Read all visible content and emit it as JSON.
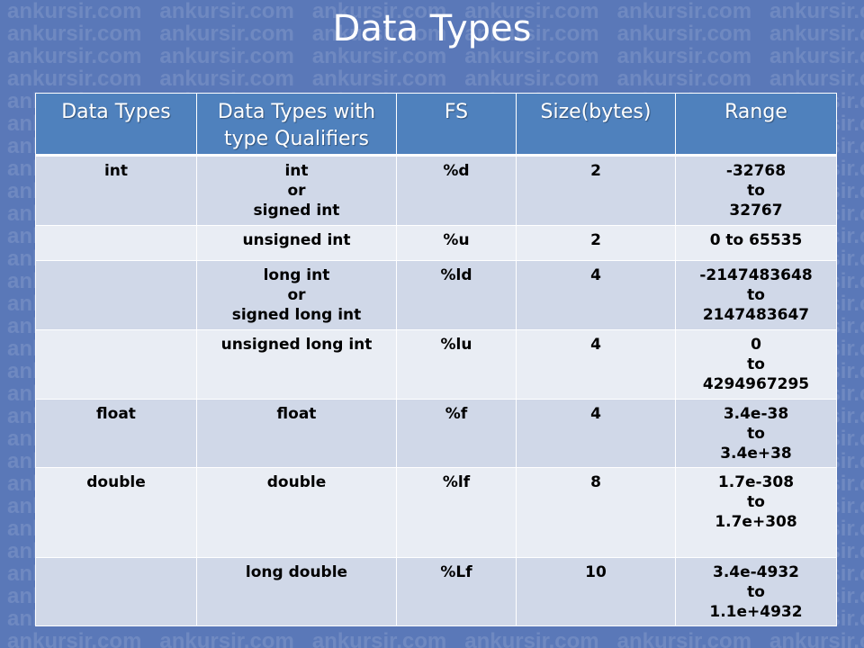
{
  "slide": {
    "title": "Data Types",
    "watermark": "ankursir.com"
  },
  "table": {
    "headers": [
      [
        "Data Types"
      ],
      [
        "Data Types with",
        "type Qualifiers"
      ],
      [
        "FS"
      ],
      [
        "Size(bytes)"
      ],
      [
        "Range"
      ]
    ],
    "rows": [
      {
        "data_type": "int",
        "qualified": [
          "int",
          "or",
          "signed int"
        ],
        "fs": "%d",
        "size": "2",
        "range": [
          "-32768",
          "to",
          "32767"
        ]
      },
      {
        "data_type": "",
        "qualified": [
          "unsigned int"
        ],
        "fs": "%u",
        "size": "2",
        "range": [
          "0 to 65535"
        ]
      },
      {
        "data_type": "",
        "qualified": [
          "long int",
          "or",
          "signed long int"
        ],
        "fs": "%ld",
        "size": "4",
        "range": [
          "-2147483648",
          "to",
          "2147483647"
        ]
      },
      {
        "data_type": "",
        "qualified": [
          "unsigned long int"
        ],
        "fs": "%lu",
        "size": "4",
        "range": [
          "0",
          "to",
          "4294967295"
        ]
      },
      {
        "data_type": "float",
        "qualified": [
          "float"
        ],
        "fs": "%f",
        "size": "4",
        "range": [
          "3.4e-38",
          "to",
          "3.4e+38"
        ]
      },
      {
        "data_type": "double",
        "qualified": [
          "double"
        ],
        "fs": "%lf",
        "size": "8",
        "range": [
          "1.7e-308",
          "to",
          "1.7e+308"
        ]
      },
      {
        "data_type": "",
        "qualified": [
          "long double"
        ],
        "fs": "%Lf",
        "size": "10",
        "range": [
          "3.4e-4932",
          "to",
          "1.1e+4932"
        ]
      }
    ]
  },
  "colors": {
    "background": "#5a78b8",
    "header": "#4f81bd",
    "row_shade": "#d0d8e8",
    "row_light": "#e9edf4"
  }
}
